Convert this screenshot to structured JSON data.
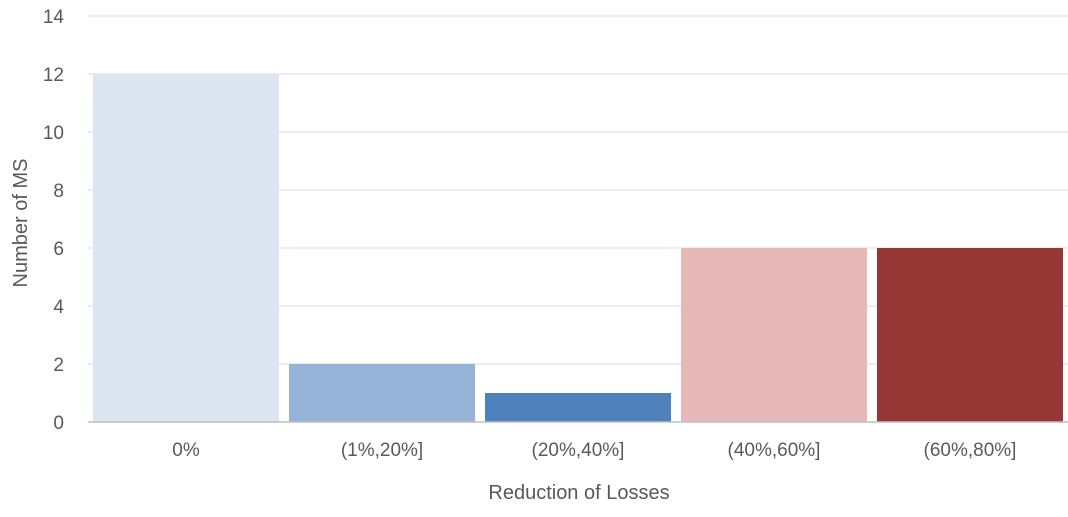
{
  "chart_data": {
    "type": "bar",
    "categories": [
      "0%",
      "(1%,20%]",
      "(20%,40%]",
      "(40%,60%]",
      "(60%,80%]"
    ],
    "values": [
      12,
      2,
      1,
      6,
      6
    ],
    "bar_colors": [
      "#dce6f2",
      "#95b3d7",
      "#4f81bd",
      "#e6b9b8",
      "#953735"
    ],
    "xlabel": "Reduction of Losses",
    "ylabel": "Number of MS",
    "ylim": [
      0,
      14
    ],
    "yticks": [
      0,
      2,
      4,
      6,
      8,
      10,
      12,
      14
    ],
    "grid": true,
    "grid_color": "#d9d9d9",
    "axis_color": "#bfbfbf",
    "legend": "none"
  }
}
